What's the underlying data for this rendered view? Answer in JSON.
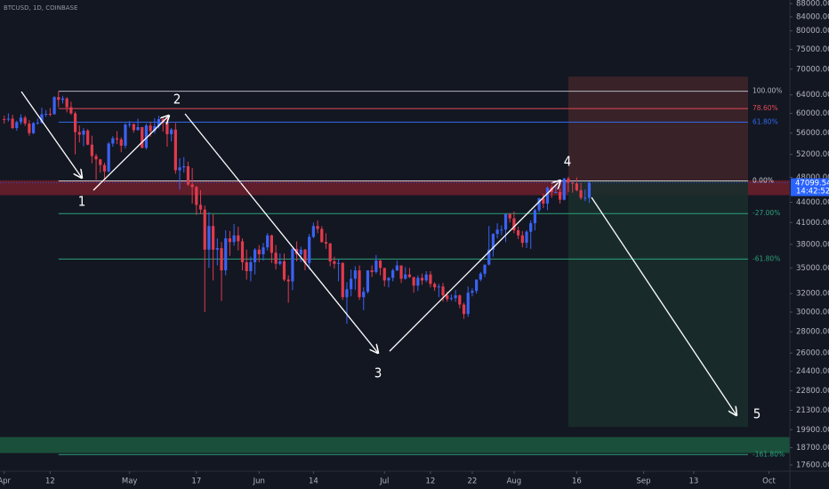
{
  "chart_data": {
    "type": "candlestick",
    "symbol": "BTCUSD, 1D, COINBASE",
    "log_scale": true,
    "up_color": "#3a63f5",
    "down_color": "#e23a4c",
    "xlim": [
      "03-31",
      "10-06"
    ],
    "xticks": [
      {
        "value": "04-01",
        "label": "Apr"
      },
      {
        "value": "04-12",
        "label": "12"
      },
      {
        "value": "05-01",
        "label": "May"
      },
      {
        "value": "05-17",
        "label": "17"
      },
      {
        "value": "06-01",
        "label": "Jun"
      },
      {
        "value": "06-14",
        "label": "14"
      },
      {
        "value": "07-01",
        "label": "Jul"
      },
      {
        "value": "07-12",
        "label": "12"
      },
      {
        "value": "07-22",
        "label": "22"
      },
      {
        "value": "08-01",
        "label": "Aug"
      },
      {
        "value": "08-16",
        "label": "16"
      },
      {
        "value": "09-01",
        "label": "Sep"
      },
      {
        "value": "09-13",
        "label": "13"
      },
      {
        "value": "10-01",
        "label": "Oct"
      }
    ],
    "ylim": [
      17220,
      89100
    ],
    "yticks": [
      {
        "value": 88000,
        "label": "88000.00"
      },
      {
        "value": 84000,
        "label": "84000.00"
      },
      {
        "value": 80000,
        "label": "80000.00"
      },
      {
        "value": 75000,
        "label": "75000.00"
      },
      {
        "value": 70000,
        "label": "70000.00"
      },
      {
        "value": 64000,
        "label": "64000.00"
      },
      {
        "value": 60000,
        "label": "60000.00"
      },
      {
        "value": 56000,
        "label": "56000.00"
      },
      {
        "value": 52000,
        "label": "52000.00"
      },
      {
        "value": 48000,
        "label": "48000.00"
      },
      {
        "value": 44000,
        "label": "44000.00"
      },
      {
        "value": 41000,
        "label": "41000.00"
      },
      {
        "value": 38000,
        "label": "38000.00"
      },
      {
        "value": 35000,
        "label": "35000.00"
      },
      {
        "value": 32000,
        "label": "32000.00"
      },
      {
        "value": 30000,
        "label": "30000.00"
      },
      {
        "value": 28000,
        "label": "28000.00"
      },
      {
        "value": 26000,
        "label": "26000.00"
      },
      {
        "value": 24400,
        "label": "24400.00"
      },
      {
        "value": 22800,
        "label": "22800.00"
      },
      {
        "value": 21300,
        "label": "21300.00"
      },
      {
        "value": 19900,
        "label": "19900.00"
      },
      {
        "value": 18700,
        "label": "18700.00"
      },
      {
        "value": 17600,
        "label": "17600.00"
      }
    ],
    "x": [
      "04-01",
      "04-02",
      "04-03",
      "04-04",
      "04-05",
      "04-06",
      "04-07",
      "04-08",
      "04-09",
      "04-10",
      "04-11",
      "04-12",
      "04-13",
      "04-14",
      "04-15",
      "04-16",
      "04-17",
      "04-18",
      "04-19",
      "04-20",
      "04-21",
      "04-22",
      "04-23",
      "04-24",
      "04-25",
      "04-26",
      "04-27",
      "04-28",
      "04-29",
      "04-30",
      "05-01",
      "05-02",
      "05-03",
      "05-04",
      "05-05",
      "05-06",
      "05-07",
      "05-08",
      "05-09",
      "05-10",
      "05-11",
      "05-12",
      "05-13",
      "05-14",
      "05-15",
      "05-16",
      "05-17",
      "05-18",
      "05-19",
      "05-20",
      "05-21",
      "05-22",
      "05-23",
      "05-24",
      "05-25",
      "05-26",
      "05-27",
      "05-28",
      "05-29",
      "05-30",
      "05-31",
      "06-01",
      "06-02",
      "06-03",
      "06-04",
      "06-05",
      "06-06",
      "06-07",
      "06-08",
      "06-09",
      "06-10",
      "06-11",
      "06-12",
      "06-13",
      "06-14",
      "06-15",
      "06-16",
      "06-17",
      "06-18",
      "06-19",
      "06-20",
      "06-21",
      "06-22",
      "06-23",
      "06-24",
      "06-25",
      "06-26",
      "06-27",
      "06-28",
      "06-29",
      "06-30",
      "07-01",
      "07-02",
      "07-03",
      "07-04",
      "07-05",
      "07-06",
      "07-07",
      "07-08",
      "07-09",
      "07-10",
      "07-11",
      "07-12",
      "07-13",
      "07-14",
      "07-15",
      "07-16",
      "07-17",
      "07-18",
      "07-19",
      "07-20",
      "07-21",
      "07-22",
      "07-23",
      "07-24",
      "07-25",
      "07-26",
      "07-27",
      "07-28",
      "07-29",
      "07-30",
      "07-31",
      "08-01",
      "08-02",
      "08-03",
      "08-04",
      "08-05",
      "08-06",
      "08-07",
      "08-08",
      "08-09",
      "08-10",
      "08-11",
      "08-12",
      "08-13",
      "08-14",
      "08-15",
      "08-16",
      "08-17",
      "08-18",
      "08-19"
    ],
    "open": [
      58800,
      58700,
      58900,
      57000,
      58200,
      59100,
      57900,
      56000,
      58000,
      58100,
      59800,
      59900,
      59800,
      63500,
      62900,
      63200,
      61300,
      60000,
      56200,
      55700,
      56500,
      53800,
      51700,
      51100,
      50100,
      49000,
      54000,
      55000,
      54800,
      53600,
      57700,
      57800,
      56600,
      57200,
      53200,
      57500,
      56400,
      57400,
      58800,
      58200,
      55800,
      56700,
      49200,
      49700,
      49900,
      46800,
      46400,
      43600,
      42900,
      37300,
      40500,
      37300,
      37500,
      34700,
      38800,
      38300,
      39200,
      38400,
      35700,
      34600,
      35700,
      37300,
      36700,
      37600,
      39200,
      36900,
      35500,
      35800,
      33600,
      33400,
      37400,
      36700,
      37300,
      35600,
      39000,
      40500,
      40100,
      38300,
      38100,
      35800,
      35500,
      35600,
      31600,
      32500,
      33700,
      34700,
      31600,
      32200,
      34700,
      34500,
      35900,
      35000,
      33500,
      33800,
      34700,
      35300,
      33700,
      34200,
      33900,
      32900,
      33800,
      33500,
      34200,
      33100,
      32700,
      32800,
      31800,
      31400,
      31500,
      31800,
      30800,
      29800,
      32100,
      32300,
      33600,
      34300,
      35400,
      37300,
      39400,
      40000,
      40000,
      42200,
      41600,
      39900,
      39200,
      38200,
      39700,
      40900,
      42800,
      44600,
      43800,
      46300,
      45600,
      45600,
      44400,
      47800,
      47100,
      47000,
      45900,
      44700,
      44700
    ],
    "high": [
      59500,
      60000,
      59700,
      58500,
      59800,
      59500,
      58600,
      58200,
      58900,
      61200,
      60700,
      61100,
      63700,
      64800,
      63800,
      63500,
      62500,
      60400,
      57500,
      57000,
      56800,
      55500,
      52100,
      51200,
      50500,
      54300,
      55400,
      56400,
      55200,
      58000,
      58400,
      57900,
      58900,
      57200,
      57900,
      58300,
      59000,
      59500,
      59200,
      59500,
      57000,
      58000,
      51300,
      51500,
      50700,
      49600,
      46600,
      45900,
      43500,
      42500,
      42200,
      38800,
      38300,
      39900,
      39800,
      40800,
      40400,
      38800,
      37300,
      36400,
      37500,
      37900,
      38200,
      39500,
      39300,
      37900,
      36800,
      36800,
      34100,
      37500,
      38400,
      37700,
      37400,
      39400,
      41000,
      41300,
      40500,
      39500,
      38200,
      36400,
      36100,
      35700,
      33300,
      34800,
      35200,
      35300,
      32700,
      34700,
      35300,
      36600,
      36000,
      35000,
      33900,
      34900,
      35900,
      35300,
      35100,
      35000,
      33900,
      34100,
      34300,
      34600,
      34600,
      33300,
      33100,
      33200,
      32200,
      31900,
      32400,
      31900,
      31000,
      32800,
      32600,
      33600,
      34500,
      35400,
      40500,
      39500,
      40900,
      40600,
      42300,
      42400,
      42600,
      40400,
      39800,
      39900,
      41300,
      43000,
      44700,
      45300,
      46500,
      46700,
      46700,
      46200,
      47900,
      48100,
      47400,
      48000,
      47100,
      46000,
      47300
    ],
    "low": [
      57900,
      58300,
      56800,
      56500,
      57700,
      57400,
      55500,
      55800,
      57700,
      57900,
      59300,
      59400,
      59800,
      61300,
      62100,
      60200,
      59700,
      52000,
      54200,
      53500,
      53700,
      50400,
      47600,
      48800,
      47100,
      48800,
      53400,
      53900,
      52400,
      53100,
      57100,
      56100,
      56500,
      53100,
      52900,
      55300,
      55900,
      56900,
      56300,
      53400,
      54400,
      48600,
      46000,
      48800,
      46600,
      43800,
      42100,
      42200,
      30000,
      35000,
      33500,
      35300,
      31200,
      34100,
      36500,
      37800,
      37200,
      34700,
      33600,
      33400,
      34200,
      35700,
      35900,
      37200,
      35600,
      34800,
      35300,
      33400,
      31000,
      32400,
      35800,
      35700,
      34700,
      34800,
      38800,
      39500,
      38200,
      37400,
      35200,
      34900,
      33400,
      31300,
      28800,
      31700,
      32400,
      31300,
      30200,
      32000,
      33900,
      34300,
      34100,
      32800,
      32700,
      33400,
      34600,
      33200,
      33600,
      33800,
      32100,
      32300,
      33000,
      33300,
      32700,
      32300,
      31600,
      31100,
      31100,
      31200,
      31100,
      30400,
      29300,
      29500,
      31700,
      32000,
      33400,
      33900,
      35300,
      36400,
      38800,
      39200,
      38300,
      41000,
      39500,
      38700,
      37600,
      37500,
      37400,
      39900,
      42500,
      43100,
      42800,
      44700,
      45400,
      43800,
      44300,
      45600,
      45500,
      45700,
      44400,
      44200,
      43900
    ],
    "close": [
      58700,
      58900,
      57000,
      58200,
      59100,
      57900,
      56000,
      58000,
      58100,
      59800,
      59900,
      59800,
      63500,
      62900,
      63200,
      61300,
      60000,
      56200,
      55700,
      56500,
      53800,
      51700,
      51100,
      50100,
      49000,
      54000,
      55000,
      54800,
      53600,
      57700,
      57800,
      56600,
      57200,
      53200,
      57500,
      56400,
      57400,
      58800,
      58200,
      55800,
      56700,
      49200,
      49700,
      49900,
      46800,
      46400,
      43600,
      42900,
      37300,
      40500,
      37300,
      37500,
      34700,
      38800,
      38300,
      39200,
      38400,
      35700,
      34600,
      35700,
      37300,
      36700,
      37600,
      39200,
      36900,
      35500,
      35800,
      33600,
      33400,
      37400,
      36700,
      37300,
      35600,
      39000,
      40500,
      40100,
      38300,
      38100,
      35800,
      35500,
      35600,
      31600,
      32500,
      33700,
      34700,
      31600,
      32200,
      34700,
      34500,
      35900,
      35000,
      33500,
      33800,
      34700,
      35300,
      33700,
      34200,
      33900,
      32900,
      33800,
      33500,
      34200,
      33100,
      32700,
      32800,
      31800,
      31400,
      31500,
      31800,
      30800,
      29800,
      32100,
      32300,
      33600,
      34300,
      35400,
      37300,
      39400,
      40000,
      40000,
      42200,
      41600,
      39900,
      39200,
      38200,
      39700,
      40900,
      42800,
      44600,
      43800,
      46300,
      45600,
      45600,
      44400,
      47800,
      47100,
      47000,
      45900,
      44700,
      44700,
      47099.54
    ],
    "last_price": {
      "value": 47099.54,
      "label": "47099.54"
    },
    "countdown": "14:42:52",
    "last_price_color": "#2962ff",
    "fib_range": [
      "04-14",
      "09-26"
    ],
    "fib_levels": [
      {
        "price": 64800,
        "label": "100.00%",
        "color": "#b2b5be"
      },
      {
        "price": 61000,
        "label": "78.60%",
        "color": "#e04a55"
      },
      {
        "price": 58200,
        "label": "61.80%",
        "color": "#2f6bf0"
      },
      {
        "price": 47400,
        "label": "0.00%",
        "color": "#c8cad2"
      },
      {
        "price": 42300,
        "label": "-27.00%",
        "color": "#2ba27a"
      },
      {
        "price": 36100,
        "label": "-61.80%",
        "color": "#2ba27a"
      },
      {
        "price": 18250,
        "label": "-161.80%",
        "color": "#2ba27a"
      }
    ],
    "zones": [
      {
        "top": 47500,
        "bottom": 45100,
        "color": "#6e1f2b"
      },
      {
        "top": 19400,
        "bottom": 18350,
        "color": "#1c5a3f"
      }
    ],
    "position": {
      "start": "08-14",
      "end": "09-26",
      "top": 68200,
      "entry": 47400,
      "bottom": 20100,
      "top_color": "#3e2329",
      "bottom_color": "#1a2e2b"
    },
    "wave_labels": [
      "1",
      "2",
      "3",
      "4",
      "5"
    ]
  }
}
